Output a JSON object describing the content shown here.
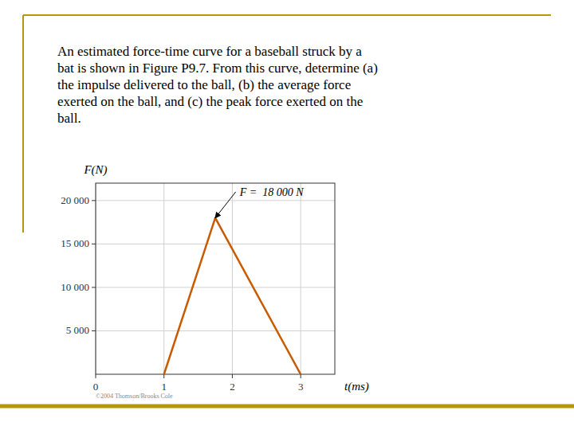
{
  "chart_data": {
    "type": "line",
    "caption": "An estimated force-time curve for a baseball struck by a\nbat is shown in Figure P9.7. From this curve, determine (a)\nthe impulse delivered to the ball, (b) the average force\nexerted on the ball, and (c) the peak force exerted on the\nball.",
    "x_label": "t(ms)",
    "y_label": "F(N)",
    "x": [
      1.0,
      1.75,
      3.0
    ],
    "series": [
      {
        "color": "#c85a00",
        "values": [
          0,
          18000,
          0
        ]
      }
    ],
    "xlim": [
      0,
      3.5
    ],
    "xticks": [
      0,
      1,
      2,
      3
    ],
    "ylim": [
      0,
      22000
    ],
    "yticks": [
      {
        "value": 5000,
        "label": "5 000"
      },
      {
        "value": 10000,
        "label": "10 000"
      },
      {
        "value": 15000,
        "label": "15 000"
      },
      {
        "value": 20000,
        "label": "20 000"
      }
    ],
    "grid": true,
    "annotations": [
      {
        "text": "F =  18 000 N",
        "x": 2.05,
        "y": 21000,
        "arrow_x": 1.75,
        "arrow_y": 18000
      }
    ],
    "credit": "©2004 Thomson/Brooks Cole"
  }
}
